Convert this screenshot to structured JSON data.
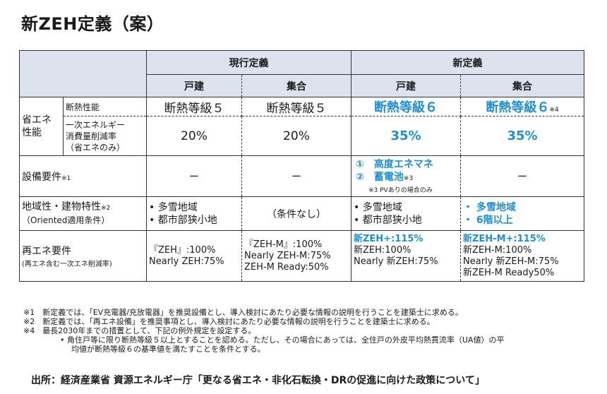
{
  "title": "新ZEH定義（案）",
  "table": {
    "header_current": "現行定義",
    "header_new": "新定義",
    "sub_detached": "戸建",
    "sub_collective": "集合",
    "rows": {
      "energy_group": "省エネ\n性能",
      "insulation_label": "断熱性能",
      "primary_label": "一次エネルギー\n消費量削減率\n（省エネのみ）",
      "equipment_label": "設備要件",
      "equipment_note": "※1",
      "region_label": "地域性・建物特性",
      "region_note": "※2",
      "region_sub": "（Oriented適用条件）",
      "renew_label": "再エネ要件",
      "renew_sub": "(再エネ含む一次エネ削減率)"
    },
    "insulation": {
      "cur_detached": "断熱等級５",
      "cur_collective": "断熱等級５",
      "new_detached": "断熱等級６",
      "new_collective": "断熱等級６",
      "new_collective_note": "※4"
    },
    "primary": {
      "cur_detached": "20%",
      "cur_collective": "20%",
      "new_detached": "35%",
      "new_collective": "35%"
    },
    "equipment": {
      "cur_detached": "ー",
      "cur_collective": "ー",
      "new_item1": "①　高度エネマネ",
      "new_item2": "②　蓄電池",
      "new_item2_note": "※3",
      "new_footnote": "※3 PVありの場合のみ",
      "new_collective": "ー"
    },
    "region": {
      "cur_detached": [
        "• 多雪地域",
        "• 都市部狭小地"
      ],
      "cur_collective": "（条件なし）",
      "new_detached": [
        "• 多雪地域",
        "• 都市部狭小地"
      ],
      "new_collective": [
        "・ 多雪地域",
        "・ 6階以上"
      ]
    },
    "renew": {
      "cur_detached": [
        "『ZEH』:100%",
        "Nearly ZEH:75%"
      ],
      "cur_collective": [
        "『ZEH-M』:100%",
        "Nearly ZEH-M:75%",
        "ZEH-M Ready:50%"
      ],
      "new_detached": [
        "新ZEH+:115%",
        "新ZEH:100%",
        "Nearly 新ZEH:75%"
      ],
      "new_collective": [
        "新ZEH-M+:115%",
        "新ZEH-M:100%",
        "Nearly 新ZEH-M:75%",
        "新ZEH-M Ready50%"
      ]
    }
  },
  "notes": [
    "※1　新定義では、「EV充電器/充放電器」を推奨設備とし、導入検討にあたり必要な情報の説明を行うことを建築士に求める。",
    "※2　新定義では、「再エネ設備」を推奨事項とし、導入検討にあたり必要な情報の説明を行うことを建築士に求める。",
    "※4　最長2030年までの措置として、下記の例外規定を設定する。",
    "• 角住戸等に限り断熱等級５以上とすることを認める。ただし、その場合にあっては、全住戸の外皮平均熱貫流率（UA値）の平",
    "均値が断熱等級６の基準値を満たすことを条件とする。"
  ],
  "source": "出所：経済産業省 資源エネルギー庁「更なる省エネ・非化石転換・DRの促進に向けた政策について」",
  "colors": {
    "header_bg": "#dce3ee",
    "accent_blue": "#1f8fd1"
  }
}
